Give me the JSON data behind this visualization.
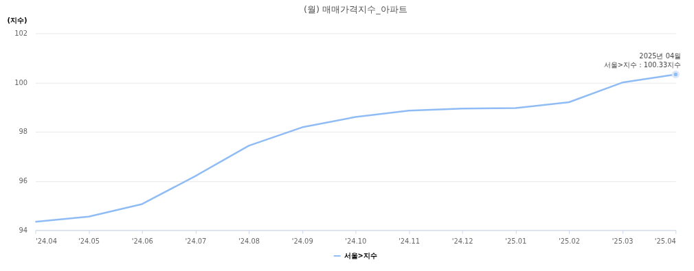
{
  "chart_data": {
    "type": "line",
    "title": "(월) 매매가격지수_아파트",
    "ylabel": "(지수)",
    "categories": [
      "'24.04",
      "'24.05",
      "'24.06",
      "'24.07",
      "'24.08",
      "'24.09",
      "'24.10",
      "'24.11",
      "'24.12",
      "'25.01",
      "'25.02",
      "'25.03",
      "'25.04"
    ],
    "series": [
      {
        "name": "서울>지수",
        "color": "#8fbcf5",
        "values": [
          94.34,
          94.55,
          95.06,
          96.2,
          97.43,
          98.18,
          98.6,
          98.86,
          98.94,
          98.96,
          99.2,
          100.0,
          100.33
        ]
      }
    ],
    "ylim": [
      94,
      102
    ],
    "yticks": [
      94,
      96,
      98,
      100,
      102
    ],
    "grid": "y",
    "legend": "bottom",
    "marker": "none",
    "line_style": "solid",
    "annotations": [
      {
        "text": "2025년 04월\n서울>지수 : 100.33지수",
        "x": "'25.04",
        "y": 100.33
      }
    ]
  }
}
